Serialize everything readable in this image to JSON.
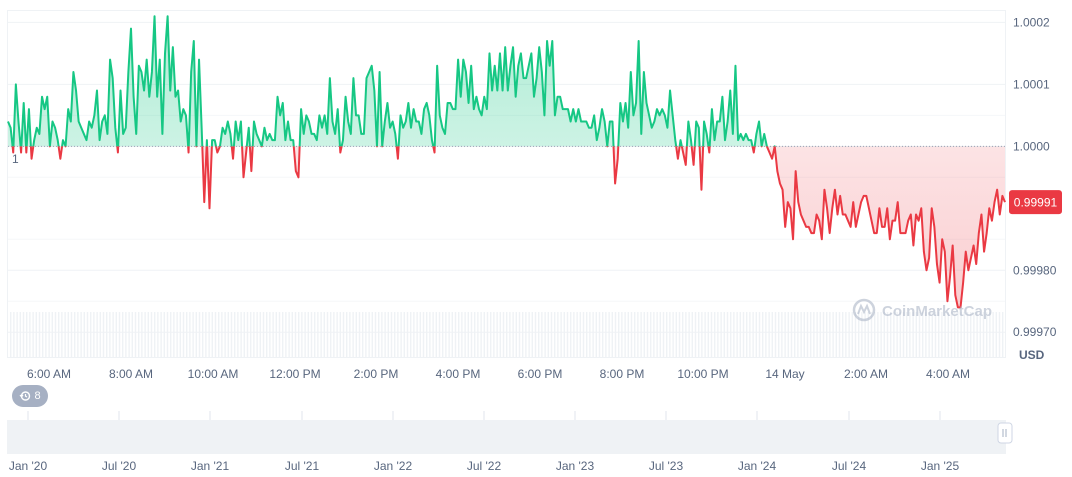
{
  "chart_data": {
    "type": "line",
    "baseline": 1.0,
    "baseline_label": "1",
    "current_price_label": "0.99991",
    "currency_label": "USD",
    "ylim": [
      0.99966,
      1.00022
    ],
    "y_ticks": [
      {
        "value": 1.0002,
        "label": "1.0002"
      },
      {
        "value": 1.0001,
        "label": "1.0001"
      },
      {
        "value": 1.0,
        "label": "1.0000"
      },
      {
        "value": 0.9998,
        "label": "0.99980"
      },
      {
        "value": 0.9997,
        "label": "0.99970"
      }
    ],
    "x_ticks": [
      "6:00 AM",
      "8:00 AM",
      "10:00 AM",
      "12:00 PM",
      "2:00 PM",
      "4:00 PM",
      "6:00 PM",
      "8:00 PM",
      "10:00 PM",
      "14 May",
      "2:00 AM",
      "4:00 AM"
    ],
    "series": [
      {
        "values": [
          1.00004,
          1.00003,
          0.99999,
          1.0001,
          1.00004,
          0.99999,
          1.00007,
          0.99999,
          1.00006,
          0.99998,
          1.00001,
          1.00003,
          1.00002,
          1.00008,
          1.00006,
          1.00008,
          1.0,
          1.00004,
          1.00003,
          1.00001,
          0.99998,
          1.00001,
          1.0,
          1.00006,
          1.00004,
          1.00012,
          1.00009,
          1.00004,
          1.00003,
          1.00002,
          1.00001,
          1.00004,
          1.00003,
          1.00005,
          1.00009,
          1.00001,
          1.00004,
          1.00005,
          1.00002,
          1.00014,
          1.00011,
          1.00003,
          0.99999,
          1.00009,
          1.00002,
          1.00003,
          1.00012,
          1.00019,
          1.00008,
          1.00002,
          1.00013,
          1.00012,
          1.00009,
          1.00014,
          1.00008,
          1.00012,
          1.00021,
          1.00008,
          1.00014,
          1.00002,
          1.00015,
          1.00021,
          1.00009,
          1.00016,
          1.00008,
          1.00009,
          1.00004,
          1.00006,
          1.00005,
          0.99999,
          1.00012,
          1.00017,
          1.0,
          1.00014,
          1.00003,
          0.99991,
          1.00001,
          0.9999,
          1.00001,
          1.00001,
          0.99999,
          1.0,
          1.00003,
          1.00002,
          1.00004,
          1.00002,
          0.99998,
          1.00004,
          1.00001,
          1.00004,
          0.99995,
          0.99999,
          1.00003,
          0.99996,
          1.00004,
          1.00002,
          1.00001,
          1.0,
          1.00003,
          1.00001,
          1.00002,
          1.00001,
          1.00001,
          1.00008,
          1.00005,
          1.00007,
          1.00001,
          1.00004,
          1.00001,
          1.00001,
          0.99996,
          0.99995,
          1.00006,
          1.00002,
          1.00005,
          1.00004,
          1.00002,
          1.00002,
          1.00001,
          1.00005,
          1.00003,
          1.00005,
          1.00002,
          1.00011,
          1.00004,
          1.00002,
          1.00006,
          0.99999,
          1.00001,
          1.00008,
          1.00004,
          1.00002,
          1.00011,
          1.00005,
          1.00005,
          1.00002,
          1.00002,
          1.00011,
          1.00012,
          1.00013,
          1.00009,
          1.0,
          1.00012,
          1.0,
          1.00004,
          1.00007,
          1.00003,
          1.00004,
          1.00002,
          0.99998,
          1.00005,
          1.00003,
          1.00004,
          1.00007,
          1.00003,
          1.00006,
          1.00004,
          1.00004,
          1.00002,
          1.00006,
          1.00007,
          1.00005,
          1.00001,
          0.99999,
          1.00013,
          1.00005,
          1.00003,
          1.00002,
          1.00007,
          1.00007,
          1.00006,
          1.00006,
          1.00014,
          1.00008,
          1.00014,
          1.00012,
          1.00007,
          1.00013,
          1.00006,
          1.00008,
          1.00006,
          1.00005,
          1.00008,
          1.00006,
          1.00015,
          1.00009,
          1.00013,
          1.00009,
          1.00015,
          1.00009,
          1.00016,
          1.00009,
          1.00013,
          1.00016,
          1.00008,
          1.00013,
          1.00015,
          1.00011,
          1.00011,
          1.00013,
          1.00015,
          1.00008,
          1.00011,
          1.00016,
          1.00012,
          1.00005,
          1.00017,
          1.00013,
          1.00017,
          1.00005,
          1.00008,
          1.00008,
          1.00006,
          1.00006,
          1.00006,
          1.00004,
          1.00006,
          1.00004,
          1.00006,
          1.00004,
          1.00004,
          1.00004,
          1.00003,
          1.00003,
          1.00005,
          1.00001,
          1.00003,
          1.00006,
          1.00004,
          1.0,
          1.00004,
          1.00004,
          0.99994,
          0.99998,
          1.00007,
          1.00004,
          1.00007,
          1.00003,
          1.00012,
          1.00005,
          1.00007,
          1.00017,
          1.00002,
          1.00012,
          1.00007,
          1.00005,
          1.00003,
          1.00004,
          1.00006,
          1.00005,
          1.00006,
          1.00005,
          1.00003,
          1.00009,
          1.00005,
          1.00001,
          0.99998,
          1.00001,
          0.99999,
          0.99997,
          1.00004,
          1.00001,
          0.99997,
          1.00004,
          1.00003,
          0.99993,
          1.00004,
          1.00002,
          0.99999,
          1.00006,
          1.00001,
          1.00004,
          1.00004,
          1.00008,
          1.00001,
          1.00004,
          1.00009,
          1.00002,
          1.00013,
          1.00001,
          1.00002,
          1.00001,
          1.00002,
          1.00001,
          1.00001,
          0.99999,
          1.00002,
          1.00004,
          1.0,
          1.00002,
          1.0,
          0.99999,
          0.99998,
          1.0,
          0.99996,
          0.99994,
          0.99993,
          0.99987,
          0.99991,
          0.9999,
          0.99985,
          0.99996,
          0.99991,
          0.99989,
          0.99988,
          0.99987,
          0.99987,
          0.99986,
          0.99986,
          0.99989,
          0.99988,
          0.99985,
          0.99993,
          0.9999,
          0.99986,
          0.9999,
          0.99993,
          0.99989,
          0.99992,
          0.99989,
          0.99989,
          0.99988,
          0.99987,
          0.99991,
          0.99987,
          0.99989,
          0.99991,
          0.99992,
          0.99992,
          0.9999,
          0.99988,
          0.99986,
          0.99986,
          0.9999,
          0.99987,
          0.99987,
          0.9999,
          0.99985,
          0.99988,
          0.99988,
          0.99991,
          0.99986,
          0.99986,
          0.99986,
          0.99988,
          0.99989,
          0.99984,
          0.99989,
          0.99988,
          0.9999,
          0.99983,
          0.9998,
          0.99982,
          0.9999,
          0.99987,
          0.99981,
          0.99978,
          0.99985,
          0.99983,
          0.99975,
          0.99979,
          0.99984,
          0.99976,
          0.99974,
          0.99974,
          0.99978,
          0.99983,
          0.9998,
          0.99982,
          0.99984,
          0.99981,
          0.99986,
          0.99989,
          0.99983,
          0.99986,
          0.9999,
          0.99988,
          0.99991,
          0.99993,
          0.99989,
          0.99992,
          0.99991
        ]
      }
    ],
    "colors": {
      "up": "#16c784",
      "down": "#ea3943",
      "price_badge": "#ea3943"
    },
    "grid": true,
    "range_selector": {
      "labels": [
        "Jan '20",
        "Jul '20",
        "Jan '21",
        "Jul '21",
        "Jan '22",
        "Jul '22",
        "Jan '23",
        "Jul '23",
        "Jan '24",
        "Jul '24",
        "Jan '25"
      ]
    }
  },
  "watermark": "CoinMarketCap",
  "history_badge": {
    "count": "8",
    "icon": "history-icon"
  }
}
